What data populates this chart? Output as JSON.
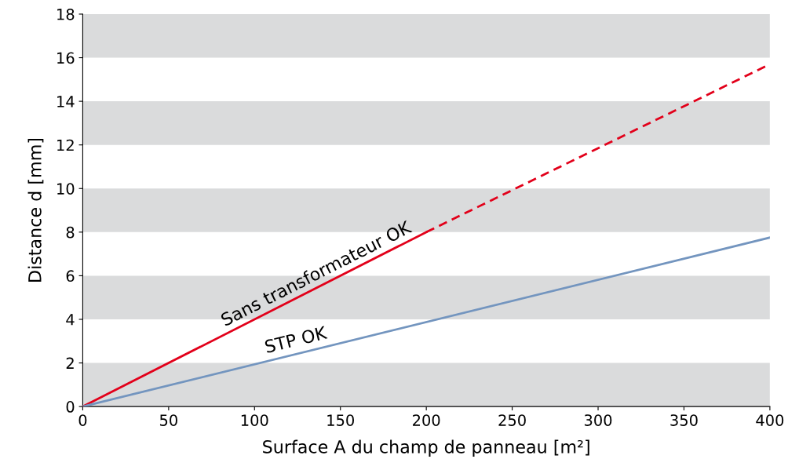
{
  "chart_data": {
    "type": "line",
    "xlabel": "Surface A du champ de panneau [m²]",
    "ylabel": "Distance d [mm]",
    "series": [
      {
        "name": "Sans transformateur OK",
        "color": "#e2001a",
        "x": [
          0,
          200
        ],
        "values": [
          0,
          8
        ],
        "line_style": "solid"
      },
      {
        "color": "#e2001a",
        "x": [
          200,
          400
        ],
        "values": [
          8,
          15.7
        ],
        "line_style": "dashed"
      },
      {
        "name": "STP OK",
        "color": "#7395bf",
        "x": [
          0,
          400
        ],
        "values": [
          0,
          7.75
        ],
        "line_style": "solid"
      }
    ],
    "xlim": [
      0,
      400
    ],
    "xticks": [
      0,
      50,
      100,
      150,
      200,
      250,
      300,
      350,
      400
    ],
    "ylim": [
      0,
      18
    ],
    "yticks": [
      0,
      2,
      4,
      6,
      8,
      10,
      12,
      14,
      16,
      18
    ],
    "bands": [
      {
        "axis": "y",
        "from": 0,
        "to": 2,
        "color": "#dadbdc"
      },
      {
        "axis": "y",
        "from": 4,
        "to": 6,
        "color": "#dadbdc"
      },
      {
        "axis": "y",
        "from": 8,
        "to": 10,
        "color": "#dadbdc"
      },
      {
        "axis": "y",
        "from": 12,
        "to": 14,
        "color": "#dadbdc"
      },
      {
        "axis": "y",
        "from": 16,
        "to": 18,
        "color": "#dadbdc"
      }
    ],
    "grid": false,
    "legend": false,
    "marker": "none"
  }
}
